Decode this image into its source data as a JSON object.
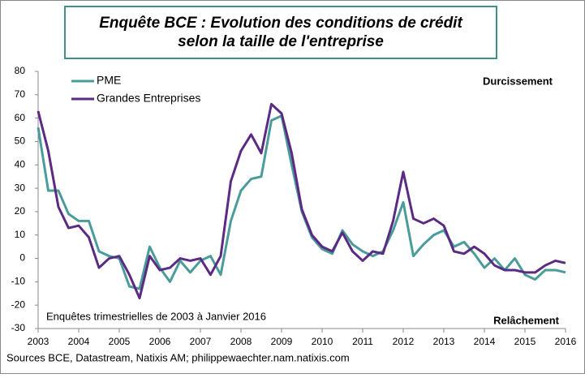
{
  "chart_data": {
    "type": "line",
    "title": "Enquête BCE : Evolution des conditions de crédit",
    "subtitle": "selon la taille de l'entreprise",
    "annotations": [
      "Durcissement",
      "Relâchement",
      "Enquêtes trimestrielles  de 2003 à Janvier 2016"
    ],
    "source": "Sources BCE, Datastream, Natixis AM; philippewaechter.nam.natixis.com",
    "x": [
      2003,
      2003.25,
      2003.5,
      2003.75,
      2004,
      2004.25,
      2004.5,
      2004.75,
      2005,
      2005.25,
      2005.5,
      2005.75,
      2006,
      2006.25,
      2006.5,
      2006.75,
      2007,
      2007.25,
      2007.5,
      2007.75,
      2008,
      2008.25,
      2008.5,
      2008.75,
      2009,
      2009.25,
      2009.5,
      2009.75,
      2010,
      2010.25,
      2010.5,
      2010.75,
      2011,
      2011.25,
      2011.5,
      2011.75,
      2012,
      2012.25,
      2012.5,
      2012.75,
      2013,
      2013.25,
      2013.5,
      2013.75,
      2014,
      2014.25,
      2014.5,
      2014.75,
      2015,
      2015.25,
      2015.5,
      2015.75,
      2016
    ],
    "series": [
      {
        "name": "PME",
        "color": "#4a9c9a",
        "values": [
          56,
          29,
          29,
          19,
          16,
          16,
          3,
          1,
          0,
          -12,
          -13,
          5,
          -4,
          -10,
          -1,
          -6,
          -1,
          1,
          -7,
          16,
          29,
          34,
          35,
          59,
          61,
          40,
          20,
          9,
          4,
          2,
          12,
          6,
          3,
          1,
          3,
          12,
          24,
          1,
          6,
          10,
          12,
          5,
          7,
          2,
          -4,
          0,
          -5,
          0,
          -7,
          -9,
          -5,
          -5,
          -6
        ]
      },
      {
        "name": "Grandes Entreprises",
        "color": "#5b2a82",
        "values": [
          63,
          46,
          22,
          13,
          14,
          9,
          -4,
          0,
          1,
          -7,
          -17,
          1,
          -5,
          -4,
          0,
          -1,
          0,
          -7,
          1,
          33,
          46,
          53,
          45,
          66,
          62,
          45,
          21,
          10,
          5,
          3,
          11,
          3,
          -1,
          3,
          2,
          16,
          37,
          17,
          15,
          17,
          14,
          3,
          2,
          5,
          2,
          -3,
          -5,
          -5,
          -6,
          -6,
          -3,
          -1,
          -2
        ]
      }
    ],
    "xlim": [
      2003,
      2016
    ],
    "xticks": [
      2003,
      2004,
      2005,
      2006,
      2007,
      2008,
      2009,
      2010,
      2011,
      2012,
      2013,
      2014,
      2015,
      2016
    ],
    "ylim": [
      -30,
      80
    ],
    "yticks": [
      -30,
      -20,
      -10,
      0,
      10,
      20,
      30,
      40,
      50,
      60,
      70,
      80
    ],
    "grid": false,
    "legend": "top-left"
  }
}
